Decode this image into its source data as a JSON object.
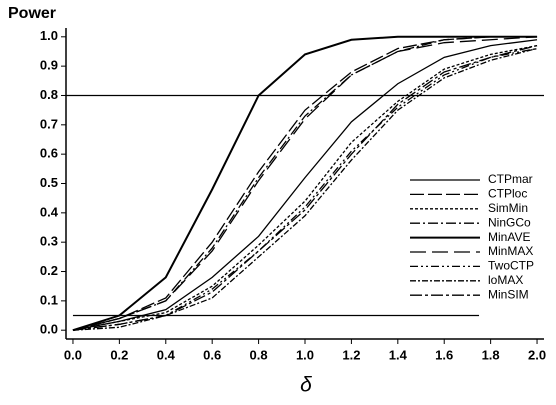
{
  "chart_data": {
    "type": "line",
    "y_label": "Power",
    "x_label": "δ",
    "x": [
      0,
      0.2,
      0.4,
      0.6,
      0.8,
      1.0,
      1.2,
      1.4,
      1.6,
      1.8,
      2.0
    ],
    "series": [
      {
        "name": "CTPmar",
        "color": "#000000",
        "dash": "",
        "values": [
          0,
          0.03,
          0.07,
          0.18,
          0.32,
          0.52,
          0.71,
          0.84,
          0.93,
          0.97,
          0.99
        ]
      },
      {
        "name": "CTPloc",
        "color": "#000000",
        "dash": "14 4",
        "values": [
          0,
          0.04,
          0.11,
          0.3,
          0.54,
          0.75,
          0.88,
          0.96,
          0.99,
          1.0,
          1.0
        ]
      },
      {
        "name": "SimMin",
        "color": "#000000",
        "dash": "3 2",
        "values": [
          0,
          0.03,
          0.06,
          0.15,
          0.29,
          0.44,
          0.64,
          0.78,
          0.89,
          0.94,
          0.97
        ]
      },
      {
        "name": "NinGCo",
        "color": "#000000",
        "dash": "10 3 2 3",
        "values": [
          0,
          0.04,
          0.1,
          0.28,
          0.52,
          0.73,
          0.87,
          0.95,
          0.99,
          1.0,
          1.0
        ]
      },
      {
        "name": "MinAVE",
        "color": "#000000",
        "dash": "",
        "width": 2,
        "values": [
          0,
          0.05,
          0.18,
          0.48,
          0.8,
          0.94,
          0.99,
          1.0,
          1.0,
          1.0,
          1.0
        ]
      },
      {
        "name": "MinMAX",
        "color": "#000000",
        "dash": "16 6",
        "values": [
          0,
          0.04,
          0.1,
          0.27,
          0.51,
          0.72,
          0.87,
          0.95,
          0.98,
          0.99,
          1.0
        ]
      },
      {
        "name": "TwoCTP",
        "color": "#000000",
        "dash": "8 3 2 3 2 3",
        "values": [
          0,
          0.02,
          0.05,
          0.14,
          0.27,
          0.42,
          0.61,
          0.76,
          0.87,
          0.93,
          0.96
        ]
      },
      {
        "name": "loMAX",
        "color": "#000000",
        "dash": "6 2 2 2",
        "values": [
          0,
          0.01,
          0.05,
          0.11,
          0.25,
          0.39,
          0.58,
          0.75,
          0.86,
          0.92,
          0.96
        ]
      },
      {
        "name": "MinSIM",
        "color": "#000000",
        "dash": "12 3 3 3",
        "values": [
          0,
          0.02,
          0.05,
          0.13,
          0.27,
          0.41,
          0.6,
          0.77,
          0.88,
          0.93,
          0.97
        ]
      }
    ],
    "hlines": [
      {
        "y": 0.8
      },
      {
        "y": 0.05,
        "x": [
          0,
          1.75
        ]
      }
    ],
    "xlim": [
      -0.03,
      2.03
    ],
    "ylim": [
      -0.03,
      1.03
    ],
    "xticks": [
      {
        "value": 0,
        "label": "0.0"
      },
      {
        "value": 0.2,
        "label": "0.2"
      },
      {
        "value": 0.4,
        "label": "0.4"
      },
      {
        "value": 0.6,
        "label": "0.6"
      },
      {
        "value": 0.8,
        "label": "0.8"
      },
      {
        "value": 1.0,
        "label": "1.0"
      },
      {
        "value": 1.2,
        "label": "1.2"
      },
      {
        "value": 1.4,
        "label": "1.4"
      },
      {
        "value": 1.6,
        "label": "1.6"
      },
      {
        "value": 1.8,
        "label": "1.8"
      },
      {
        "value": 2.0,
        "label": "2.0"
      }
    ],
    "yticks": [
      {
        "value": 0,
        "label": "0.0"
      },
      {
        "value": 0.1,
        "label": "0.1"
      },
      {
        "value": 0.2,
        "label": "0.2"
      },
      {
        "value": 0.3,
        "label": "0.3"
      },
      {
        "value": 0.4,
        "label": "0.4"
      },
      {
        "value": 0.5,
        "label": "0.5"
      },
      {
        "value": 0.6,
        "label": "0.6"
      },
      {
        "value": 0.7,
        "label": "0.7"
      },
      {
        "value": 0.8,
        "label": "0.8"
      },
      {
        "value": 0.9,
        "label": "0.9"
      },
      {
        "value": 1.0,
        "label": "1.0"
      }
    ],
    "grid": false,
    "legend": "right"
  }
}
